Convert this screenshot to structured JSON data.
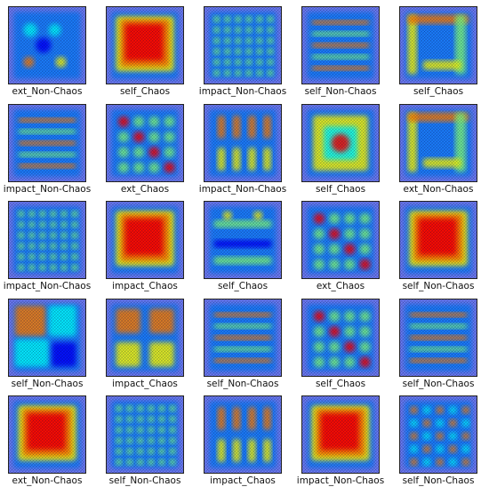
{
  "colormap": [
    "#00007f",
    "#0000ff",
    "#007fff",
    "#00ffff",
    "#7fff7f",
    "#ffff00",
    "#ff7f00",
    "#ff0000",
    "#7f0000"
  ],
  "tiles": [
    {
      "label": "ext_Non-Chaos",
      "pattern": "spots"
    },
    {
      "label": "self_Chaos",
      "pattern": "block"
    },
    {
      "label": "impact_Non-Chaos",
      "pattern": "lattice"
    },
    {
      "label": "self_Non-Chaos",
      "pattern": "stripes"
    },
    {
      "label": "self_Chaos",
      "pattern": "frame"
    },
    {
      "label": "impact_Non-Chaos",
      "pattern": "stripes"
    },
    {
      "label": "ext_Chaos",
      "pattern": "grid"
    },
    {
      "label": "impact_Non-Chaos",
      "pattern": "columns"
    },
    {
      "label": "self_Chaos",
      "pattern": "rings"
    },
    {
      "label": "ext_Non-Chaos",
      "pattern": "frame"
    },
    {
      "label": "impact_Non-Chaos",
      "pattern": "lattice"
    },
    {
      "label": "impact_Chaos",
      "pattern": "block"
    },
    {
      "label": "self_Chaos",
      "pattern": "bands"
    },
    {
      "label": "ext_Chaos",
      "pattern": "grid"
    },
    {
      "label": "self_Non-Chaos",
      "pattern": "block"
    },
    {
      "label": "self_Non-Chaos",
      "pattern": "corner"
    },
    {
      "label": "impact_Chaos",
      "pattern": "quads"
    },
    {
      "label": "self_Non-Chaos",
      "pattern": "stripes"
    },
    {
      "label": "self_Chaos",
      "pattern": "grid"
    },
    {
      "label": "self_Non-Chaos",
      "pattern": "stripes"
    },
    {
      "label": "ext_Non-Chaos",
      "pattern": "block"
    },
    {
      "label": "self_Non-Chaos",
      "pattern": "lattice"
    },
    {
      "label": "impact_Chaos",
      "pattern": "columns"
    },
    {
      "label": "impact_Non-Chaos",
      "pattern": "block"
    },
    {
      "label": "self_Non-Chaos",
      "pattern": "diamonds"
    }
  ]
}
